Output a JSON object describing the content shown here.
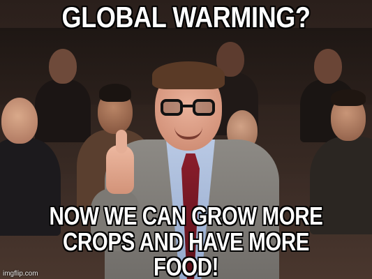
{
  "meme": {
    "top_caption": "GLOBAL WARMING?",
    "bottom_caption_line1": "NOW WE CAN GROW MORE",
    "bottom_caption_line2": "CROPS AND HAVE MORE FOOD!",
    "watermark": "imgflip.com"
  },
  "colors": {
    "caption_text": "#ffffff",
    "caption_outline": "#000000",
    "suit": "#8d8a85",
    "tie": "#8a1e2c",
    "shirt": "#b9c9e4"
  },
  "icons": [
    "thumbs-up"
  ]
}
